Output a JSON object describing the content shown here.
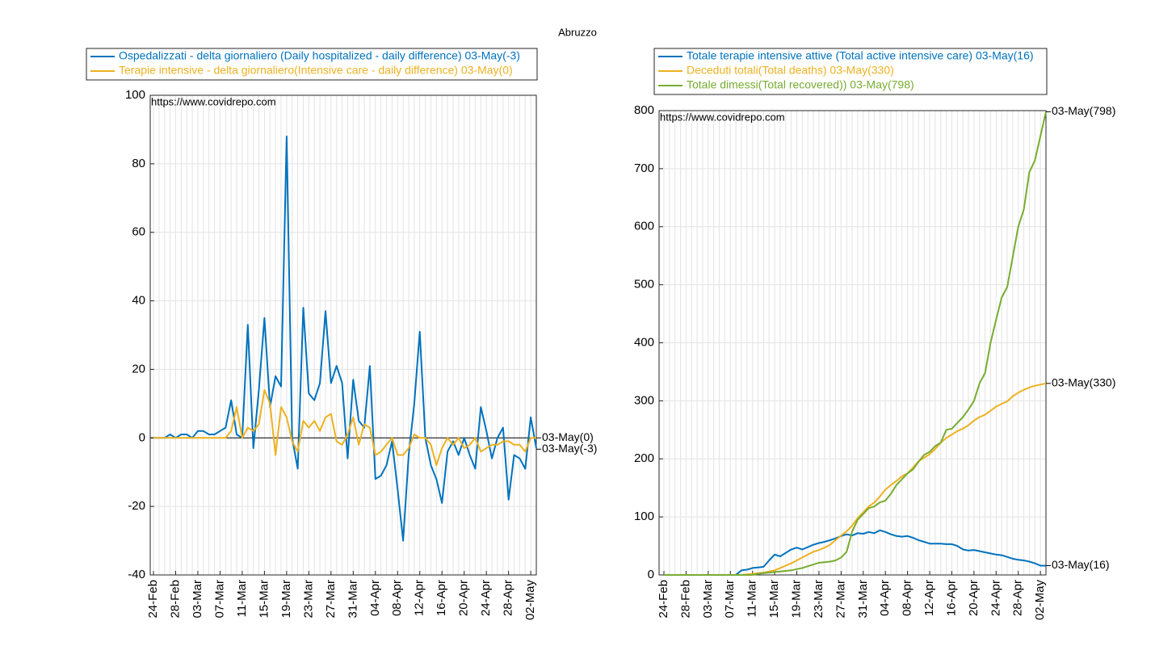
{
  "title": "Abruzzo",
  "chart_data": [
    {
      "type": "line",
      "annotation": "https://www.covidrepo.com",
      "categories": [
        "24-Feb",
        null,
        null,
        null,
        "28-Feb",
        null,
        null,
        null,
        "03-Mar",
        null,
        null,
        null,
        "07-Mar",
        null,
        null,
        null,
        "11-Mar",
        null,
        null,
        null,
        "15-Mar",
        null,
        null,
        null,
        "19-Mar",
        null,
        null,
        null,
        "23-Mar",
        null,
        null,
        null,
        "27-Mar",
        null,
        null,
        null,
        "31-Mar",
        null,
        null,
        null,
        "04-Apr",
        null,
        null,
        null,
        "08-Apr",
        null,
        null,
        null,
        "12-Apr",
        null,
        null,
        null,
        "16-Apr",
        null,
        null,
        null,
        "20-Apr",
        null,
        null,
        null,
        "24-Apr",
        null,
        null,
        null,
        "28-Apr",
        null,
        null,
        null,
        "02-May",
        null
      ],
      "ylim": [
        -40,
        100
      ],
      "yticks": [
        -40,
        -20,
        0,
        20,
        40,
        60,
        80,
        100
      ],
      "grid": true,
      "legend": "top",
      "series": [
        {
          "name": "Ospedalizzati - delta giornaliero (Daily hospitalized - daily difference) 03-May(-3)",
          "color": "#0072bd",
          "end_label": "03-May(-3)",
          "values": [
            0,
            0,
            0,
            1,
            0,
            1,
            1,
            0,
            2,
            2,
            1,
            1,
            2,
            3,
            11,
            1,
            0,
            33,
            -3,
            14,
            35,
            9,
            18,
            15,
            88,
            0,
            -9,
            38,
            13,
            11,
            16,
            37,
            16,
            21,
            16,
            -6,
            17,
            5,
            3,
            21,
            -12,
            -11,
            -8,
            -1,
            -15,
            -30,
            -5,
            10,
            31,
            0,
            -8,
            -12,
            -19,
            -4,
            -1,
            -5,
            0,
            -5,
            -9,
            9,
            2,
            -6,
            0,
            3,
            -18,
            -5,
            -6,
            -9,
            6,
            -3
          ]
        },
        {
          "name": "Terapie intensive - delta giornaliero(Intensive care - daily difference) 03-May(0)",
          "color": "#edb120",
          "end_label": "03-May(0)",
          "values": [
            0,
            0,
            0,
            0,
            0,
            0,
            0,
            0,
            0,
            0,
            0,
            0,
            0,
            0,
            2,
            9,
            0,
            3,
            2,
            4,
            14,
            10,
            -5,
            9,
            6,
            -1,
            -4,
            5,
            3,
            5,
            2,
            6,
            7,
            -1,
            -2,
            1,
            6,
            -2,
            4,
            3,
            -5,
            -4,
            -2,
            0,
            -5,
            -5,
            -3,
            1,
            0,
            0,
            -2,
            -8,
            -3,
            0,
            -2,
            0,
            -3,
            -2,
            0,
            -4,
            -3,
            -2,
            -2,
            -1,
            -1,
            -2,
            -2,
            -4,
            0,
            0
          ]
        }
      ]
    },
    {
      "type": "line",
      "annotation": "https://www.covidrepo.com",
      "categories": [
        "24-Feb",
        null,
        null,
        null,
        "28-Feb",
        null,
        null,
        null,
        "03-Mar",
        null,
        null,
        null,
        "07-Mar",
        null,
        null,
        null,
        "11-Mar",
        null,
        null,
        null,
        "15-Mar",
        null,
        null,
        null,
        "19-Mar",
        null,
        null,
        null,
        "23-Mar",
        null,
        null,
        null,
        "27-Mar",
        null,
        null,
        null,
        "31-Mar",
        null,
        null,
        null,
        "04-Apr",
        null,
        null,
        null,
        "08-Apr",
        null,
        null,
        null,
        "12-Apr",
        null,
        null,
        null,
        "16-Apr",
        null,
        null,
        null,
        "20-Apr",
        null,
        null,
        null,
        "24-Apr",
        null,
        null,
        null,
        "28-Apr",
        null,
        null,
        null,
        "02-May",
        null
      ],
      "ylim": [
        0,
        800
      ],
      "yticks": [
        0,
        100,
        200,
        300,
        400,
        500,
        600,
        700,
        800
      ],
      "grid": true,
      "legend": "top",
      "series": [
        {
          "name": "Totale terapie intensive attive (Total active intensive care) 03-May(16)",
          "color": "#0072bd",
          "end_label": "03-May(16)",
          "values": [
            0,
            0,
            0,
            0,
            0,
            0,
            0,
            0,
            0,
            0,
            0,
            0,
            0,
            0,
            8,
            9,
            12,
            13,
            14,
            25,
            35,
            32,
            38,
            44,
            47,
            44,
            48,
            52,
            55,
            57,
            60,
            63,
            67,
            70,
            68,
            72,
            71,
            74,
            72,
            77,
            74,
            70,
            67,
            66,
            67,
            64,
            60,
            57,
            54,
            54,
            54,
            53,
            53,
            50,
            44,
            42,
            43,
            41,
            39,
            37,
            35,
            34,
            31,
            28,
            26,
            25,
            23,
            20,
            16,
            16
          ]
        },
        {
          "name": "Deceduti totali(Total deaths) 03-May(330)",
          "color": "#edb120",
          "end_label": "03-May(330)",
          "values": [
            0,
            0,
            0,
            0,
            0,
            0,
            0,
            0,
            0,
            0,
            0,
            0,
            0,
            0,
            0,
            1,
            2,
            3,
            4,
            6,
            8,
            12,
            16,
            20,
            25,
            30,
            35,
            40,
            43,
            47,
            52,
            60,
            68,
            75,
            85,
            98,
            108,
            118,
            125,
            135,
            147,
            155,
            162,
            170,
            175,
            185,
            196,
            202,
            208,
            217,
            228,
            236,
            242,
            248,
            252,
            258,
            266,
            272,
            276,
            283,
            290,
            295,
            299,
            308,
            314,
            319,
            323,
            326,
            328,
            330
          ]
        },
        {
          "name": "Totale dimessi(Total recovered)) 03-May(798)",
          "color": "#77ac30",
          "end_label": "03-May(798)",
          "values": [
            0,
            0,
            0,
            0,
            0,
            0,
            0,
            0,
            0,
            0,
            0,
            0,
            0,
            0,
            0,
            0,
            0,
            2,
            3,
            4,
            5,
            6,
            7,
            8,
            10,
            12,
            15,
            18,
            21,
            22,
            23,
            25,
            30,
            40,
            75,
            95,
            105,
            115,
            118,
            125,
            128,
            140,
            155,
            165,
            175,
            182,
            195,
            207,
            212,
            222,
            228,
            250,
            252,
            262,
            272,
            285,
            300,
            330,
            348,
            400,
            440,
            478,
            496,
            548,
            600,
            630,
            694,
            714,
            756,
            798
          ]
        }
      ]
    }
  ]
}
